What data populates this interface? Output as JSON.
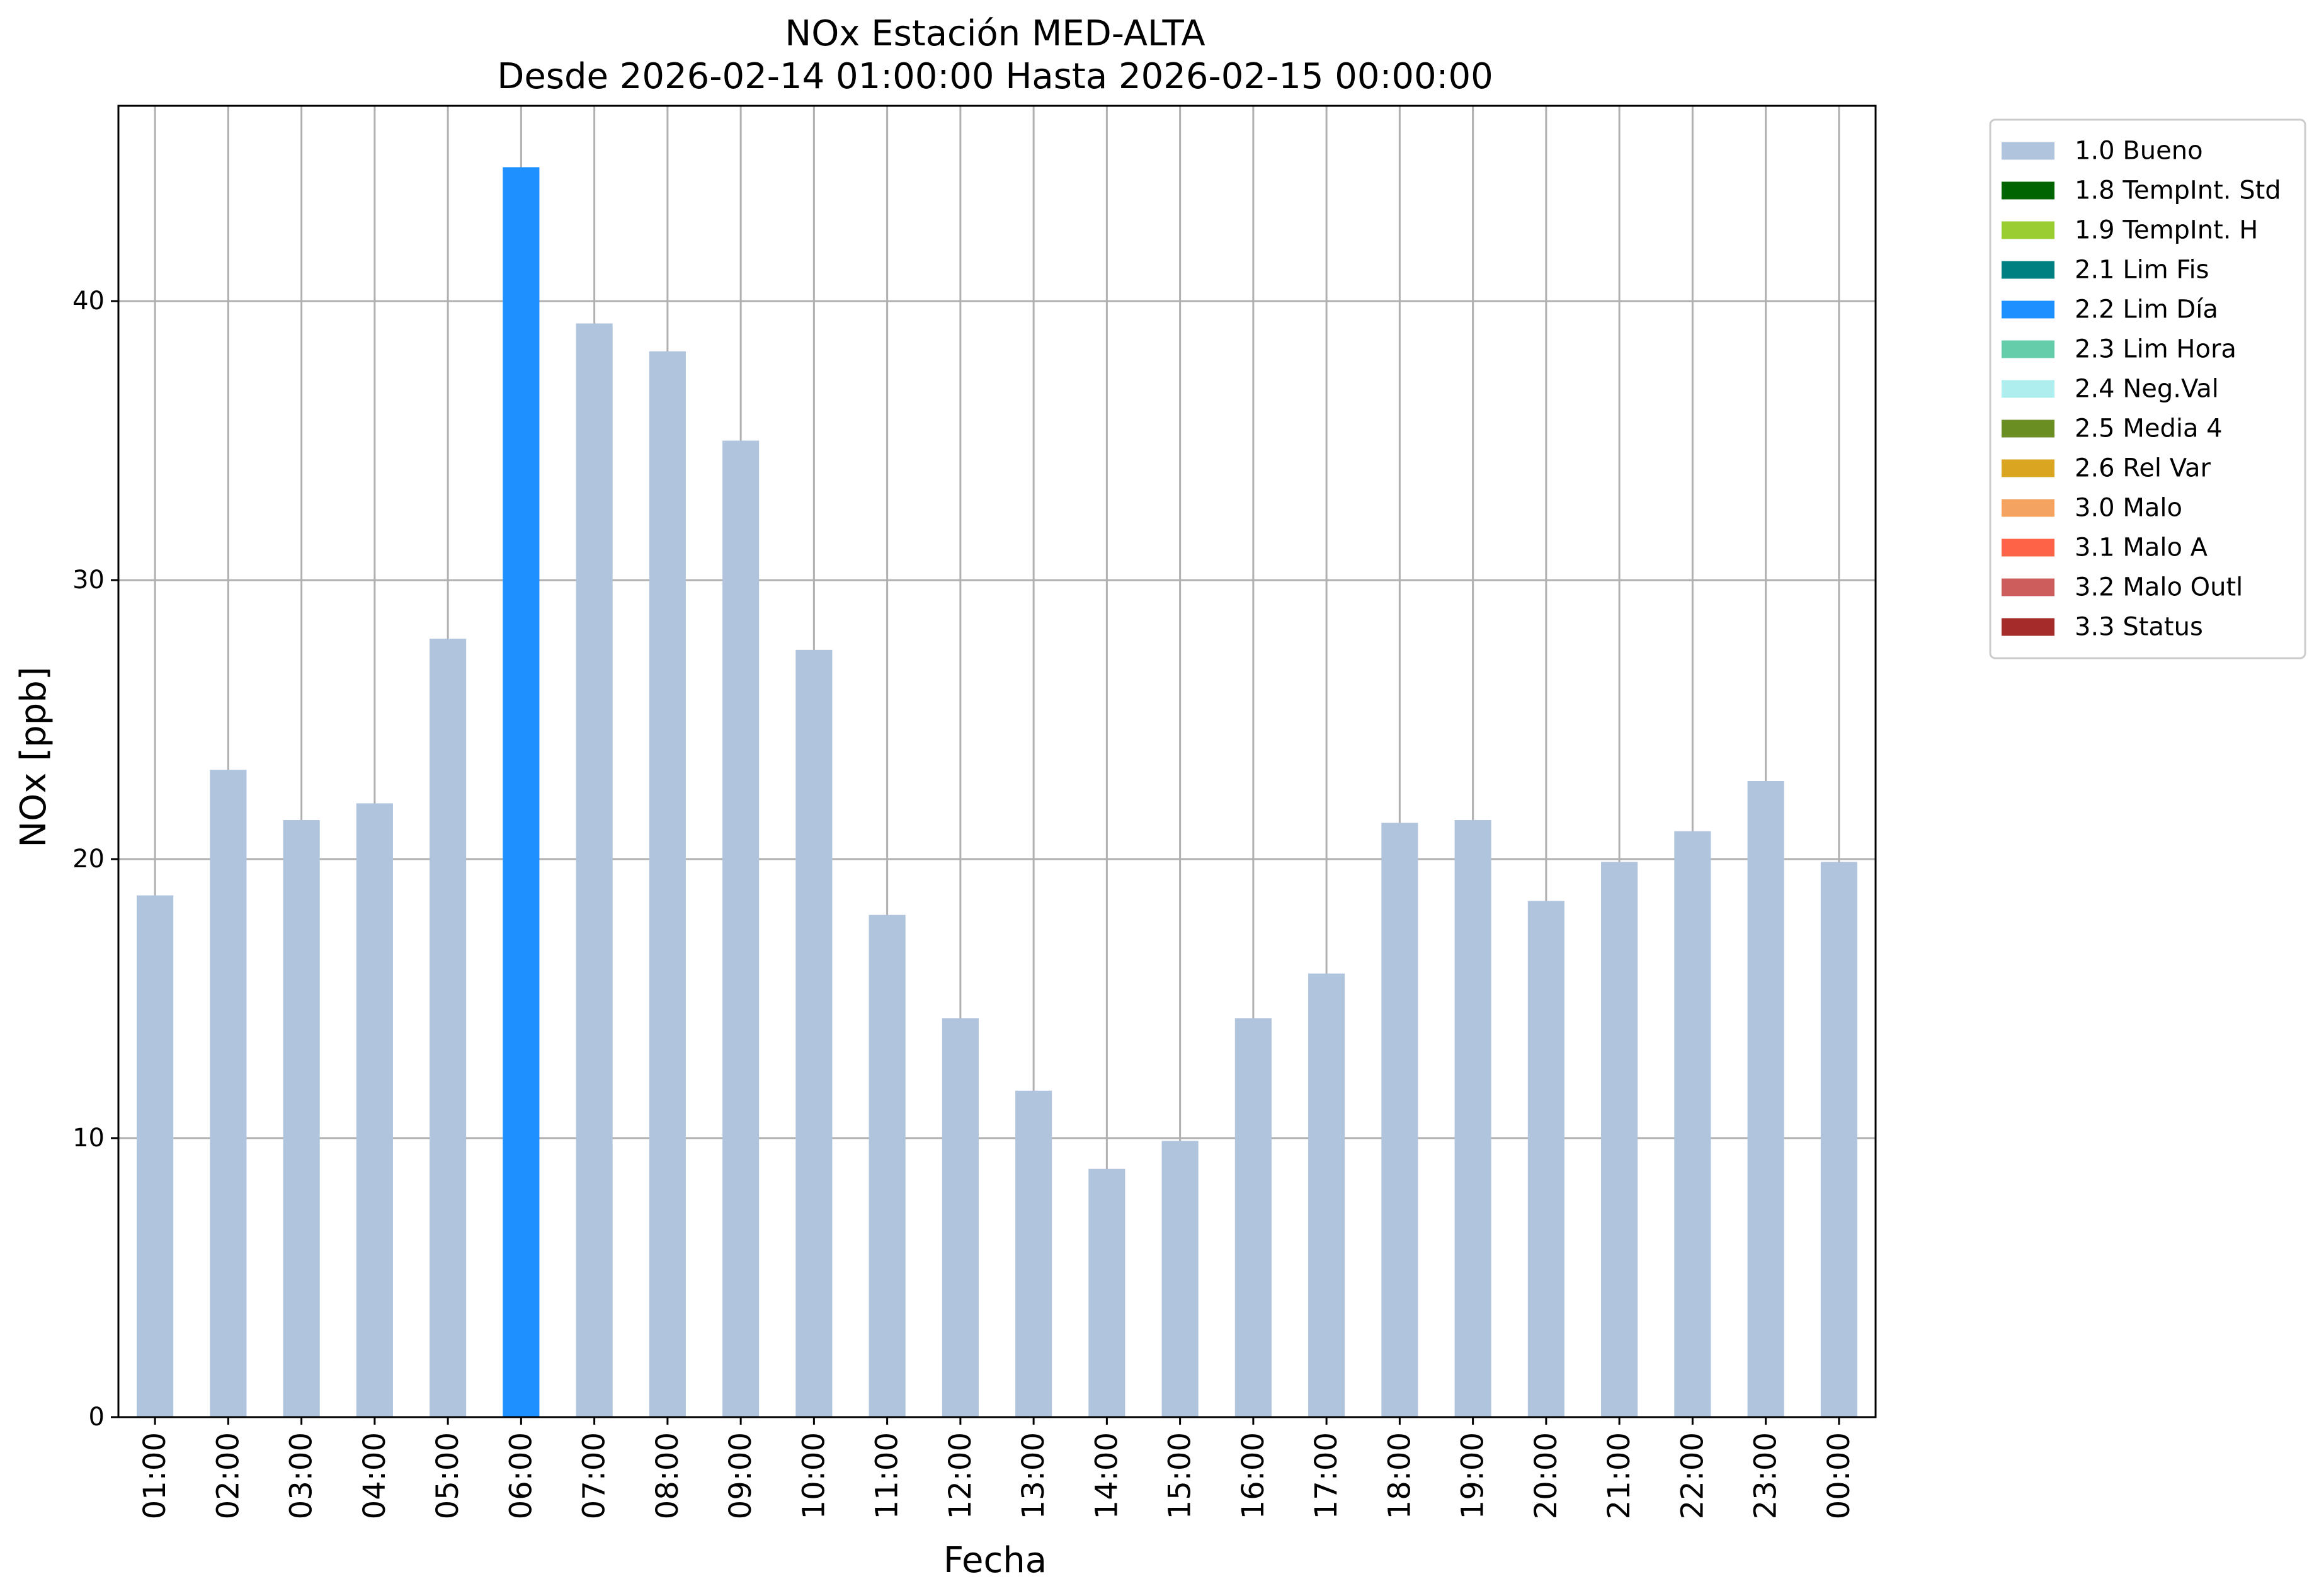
{
  "chart_data": {
    "type": "bar",
    "title": "NOx Estación MED-ALTA",
    "subtitle": "Desde 2026-02-14 01:00:00 Hasta 2026-02-15 00:00:00",
    "xlabel": "Fecha",
    "ylabel": "NOx [ppb]",
    "ylim": [
      0,
      47
    ],
    "yticks": [
      "0",
      "10",
      "20",
      "30",
      "40"
    ],
    "grid": true,
    "legend_position": "outside-top-right",
    "categories": [
      "01:00",
      "02:00",
      "03:00",
      "04:00",
      "05:00",
      "06:00",
      "07:00",
      "08:00",
      "09:00",
      "10:00",
      "11:00",
      "12:00",
      "13:00",
      "14:00",
      "15:00",
      "16:00",
      "17:00",
      "18:00",
      "19:00",
      "20:00",
      "21:00",
      "22:00",
      "23:00",
      "00:00"
    ],
    "values": [
      18.7,
      23.2,
      21.4,
      22.0,
      27.9,
      44.8,
      39.2,
      38.2,
      35.0,
      27.5,
      18.0,
      14.3,
      11.7,
      8.9,
      9.9,
      14.3,
      15.9,
      21.3,
      21.4,
      18.5,
      19.9,
      21.0,
      22.8,
      19.9
    ],
    "bar_flags": [
      "1.0 Bueno",
      "1.0 Bueno",
      "1.0 Bueno",
      "1.0 Bueno",
      "1.0 Bueno",
      "2.2 Lim Día",
      "1.0 Bueno",
      "1.0 Bueno",
      "1.0 Bueno",
      "1.0 Bueno",
      "1.0 Bueno",
      "1.0 Bueno",
      "1.0 Bueno",
      "1.0 Bueno",
      "1.0 Bueno",
      "1.0 Bueno",
      "1.0 Bueno",
      "1.0 Bueno",
      "1.0 Bueno",
      "1.0 Bueno",
      "1.0 Bueno",
      "1.0 Bueno",
      "1.0 Bueno",
      "1.0 Bueno"
    ],
    "legend": [
      {
        "label": "1.0 Bueno",
        "color": "#b0c4de"
      },
      {
        "label": "1.8 TempInt. Std",
        "color": "#006400"
      },
      {
        "label": "1.9 TempInt. H",
        "color": "#9acd32"
      },
      {
        "label": "2.1 Lim Fis",
        "color": "#008080"
      },
      {
        "label": "2.2 Lim Día",
        "color": "#1e90ff"
      },
      {
        "label": "2.3 Lim Hora",
        "color": "#66cdaa"
      },
      {
        "label": "2.4 Neg.Val",
        "color": "#afeeee"
      },
      {
        "label": "2.5 Media 4",
        "color": "#6b8e23"
      },
      {
        "label": "2.6 Rel Var",
        "color": "#daa520"
      },
      {
        "label": "3.0 Malo",
        "color": "#f4a460"
      },
      {
        "label": "3.1 Malo A",
        "color": "#ff6347"
      },
      {
        "label": "3.2 Malo Outl",
        "color": "#cd5c5c"
      },
      {
        "label": "3.3 Status",
        "color": "#a52a2a"
      }
    ]
  }
}
